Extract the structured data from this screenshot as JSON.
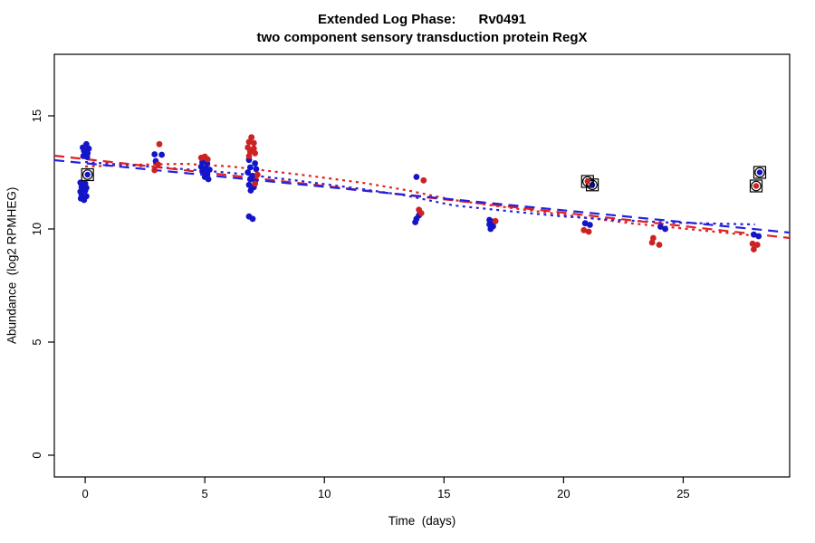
{
  "chart_data": {
    "type": "scatter",
    "title_line1": "Extended Log Phase:      Rv0491",
    "title_line2": "two component sensory transduction protein RegX",
    "xlabel": "Time  (days)",
    "ylabel": "Abundance  (log2 RPMHEG)",
    "xlim": [
      -1.29,
      29.45
    ],
    "ylim": [
      -0.96,
      17.72
    ],
    "xticks": [
      0,
      5,
      10,
      15,
      20,
      25
    ],
    "yticks": [
      0,
      5,
      10,
      15
    ],
    "grid": false,
    "legend": "none",
    "colors": {
      "blue_points": "#1414c8",
      "red_points": "#cc2222",
      "blue_line": "#2222dd",
      "red_line": "#e02020",
      "outlier_ring": "#000000"
    },
    "series": [
      {
        "name": "blue",
        "color": "#1414c8",
        "points": [
          [
            -0.1,
            13.6
          ],
          [
            0.05,
            13.75
          ],
          [
            0.15,
            13.55
          ],
          [
            -0.05,
            13.45
          ],
          [
            0.1,
            13.35
          ],
          [
            -0.08,
            13.22
          ],
          [
            0.08,
            13.18
          ],
          [
            -0.2,
            12.05
          ],
          [
            0.0,
            12.0
          ],
          [
            -0.15,
            11.85
          ],
          [
            0.05,
            11.82
          ],
          [
            -0.2,
            11.65
          ],
          [
            0.0,
            11.7
          ],
          [
            -0.15,
            11.52
          ],
          [
            0.05,
            11.45
          ],
          [
            -0.18,
            11.35
          ],
          [
            -0.05,
            11.28
          ],
          [
            2.9,
            13.3
          ],
          [
            3.2,
            13.28
          ],
          [
            2.95,
            13.0
          ],
          [
            4.9,
            12.95
          ],
          [
            5.1,
            12.9
          ],
          [
            4.85,
            12.75
          ],
          [
            5.05,
            12.7
          ],
          [
            5.2,
            12.62
          ],
          [
            4.9,
            12.55
          ],
          [
            5.1,
            12.45
          ],
          [
            5.0,
            12.3
          ],
          [
            5.15,
            12.2
          ],
          [
            6.85,
            13.05
          ],
          [
            7.1,
            12.9
          ],
          [
            6.9,
            12.72
          ],
          [
            7.15,
            12.65
          ],
          [
            6.8,
            12.5
          ],
          [
            7.0,
            12.35
          ],
          [
            6.9,
            12.2
          ],
          [
            7.1,
            12.08
          ],
          [
            6.85,
            11.95
          ],
          [
            7.05,
            11.85
          ],
          [
            6.92,
            11.7
          ],
          [
            6.85,
            10.55
          ],
          [
            7.0,
            10.45
          ],
          [
            13.85,
            12.3
          ],
          [
            13.95,
            10.6
          ],
          [
            13.85,
            10.45
          ],
          [
            13.8,
            10.3
          ],
          [
            16.9,
            10.4
          ],
          [
            17.05,
            10.32
          ],
          [
            16.9,
            10.2
          ],
          [
            17.05,
            10.12
          ],
          [
            16.95,
            10.0
          ],
          [
            20.9,
            10.25
          ],
          [
            21.1,
            10.18
          ],
          [
            24.05,
            10.1
          ],
          [
            24.25,
            10.0
          ],
          [
            27.95,
            9.75
          ],
          [
            28.15,
            9.68
          ]
        ],
        "circled_points": [
          [
            0.1,
            12.4
          ],
          [
            21.2,
            11.95
          ],
          [
            28.2,
            12.5
          ]
        ]
      },
      {
        "name": "red",
        "color": "#cc2222",
        "points": [
          [
            3.1,
            13.75
          ],
          [
            3.05,
            12.85
          ],
          [
            2.9,
            12.6
          ],
          [
            4.85,
            13.15
          ],
          [
            5.0,
            13.2
          ],
          [
            5.12,
            13.08
          ],
          [
            6.95,
            14.05
          ],
          [
            6.85,
            13.85
          ],
          [
            7.05,
            13.8
          ],
          [
            6.8,
            13.6
          ],
          [
            7.05,
            13.55
          ],
          [
            6.9,
            13.42
          ],
          [
            7.1,
            13.35
          ],
          [
            6.85,
            13.22
          ],
          [
            7.2,
            12.4
          ],
          [
            7.1,
            12.0
          ],
          [
            14.15,
            12.15
          ],
          [
            13.95,
            10.85
          ],
          [
            14.05,
            10.7
          ],
          [
            17.15,
            10.35
          ],
          [
            20.85,
            9.95
          ],
          [
            21.05,
            9.88
          ],
          [
            23.75,
            9.6
          ],
          [
            23.7,
            9.4
          ],
          [
            24.0,
            9.3
          ],
          [
            27.9,
            9.35
          ],
          [
            28.1,
            9.3
          ],
          [
            27.95,
            9.1
          ]
        ],
        "circled_points": [
          [
            21.0,
            12.1
          ],
          [
            28.05,
            11.9
          ]
        ]
      }
    ],
    "trend_lines": [
      {
        "name": "red-dotted-smooth",
        "color": "#e02020",
        "style": "dotted",
        "points": [
          [
            0,
            12.76
          ],
          [
            2.1,
            12.84
          ],
          [
            4.2,
            12.88
          ],
          [
            6.1,
            12.76
          ],
          [
            9.0,
            12.4
          ],
          [
            11.6,
            12.04
          ],
          [
            13.4,
            11.72
          ],
          [
            15.4,
            11.28
          ],
          [
            17.6,
            10.96
          ],
          [
            19.9,
            10.64
          ],
          [
            22.9,
            10.24
          ],
          [
            25.2,
            10.0
          ],
          [
            28.2,
            9.68
          ]
        ]
      },
      {
        "name": "blue-dotted-smooth",
        "color": "#2222dd",
        "style": "dotted",
        "points": [
          [
            0,
            12.96
          ],
          [
            2.1,
            12.8
          ],
          [
            4.2,
            12.64
          ],
          [
            6.1,
            12.48
          ],
          [
            9.0,
            12.12
          ],
          [
            11.6,
            11.76
          ],
          [
            13.4,
            11.48
          ],
          [
            15.4,
            11.04
          ],
          [
            17.6,
            10.8
          ],
          [
            19.9,
            10.56
          ],
          [
            22.2,
            10.4
          ],
          [
            24.5,
            10.28
          ],
          [
            28.0,
            10.2
          ]
        ]
      },
      {
        "name": "red-dashed-linear",
        "color": "#e02020",
        "style": "dashed",
        "points": [
          [
            -1.29,
            13.24
          ],
          [
            29.45,
            9.6
          ]
        ]
      },
      {
        "name": "blue-dashed-linear",
        "color": "#2222dd",
        "style": "dashed",
        "points": [
          [
            -1.29,
            13.04
          ],
          [
            29.45,
            9.84
          ]
        ]
      }
    ]
  }
}
